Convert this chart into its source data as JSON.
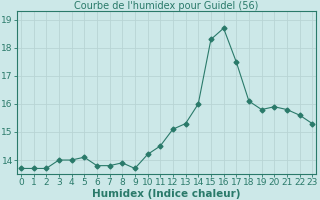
{
  "x": [
    0,
    1,
    2,
    3,
    4,
    5,
    6,
    7,
    8,
    9,
    10,
    11,
    12,
    13,
    14,
    15,
    16,
    17,
    18,
    19,
    20,
    21,
    22,
    23
  ],
  "y": [
    13.7,
    13.7,
    13.7,
    14.0,
    14.0,
    14.1,
    13.8,
    13.8,
    13.9,
    13.7,
    14.2,
    14.5,
    15.1,
    15.3,
    16.0,
    18.3,
    18.7,
    17.5,
    16.1,
    15.8,
    15.9,
    15.8,
    15.6,
    15.3
  ],
  "line_color": "#2a7a6a",
  "marker": "D",
  "marker_size": 2.5,
  "bg_color": "#cce8e8",
  "grid_color": "#b8d4d4",
  "title": "Courbe de l'humidex pour Guidel (56)",
  "xlabel": "Humidex (Indice chaleur)",
  "ylim": [
    13.5,
    19.3
  ],
  "yticks": [
    14,
    15,
    16,
    17,
    18,
    19
  ],
  "xticks": [
    0,
    1,
    2,
    3,
    4,
    5,
    6,
    7,
    8,
    9,
    10,
    11,
    12,
    13,
    14,
    15,
    16,
    17,
    18,
    19,
    20,
    21,
    22,
    23
  ],
  "tick_label_fontsize": 6.5,
  "xlabel_fontsize": 7.5,
  "title_fontsize": 7
}
